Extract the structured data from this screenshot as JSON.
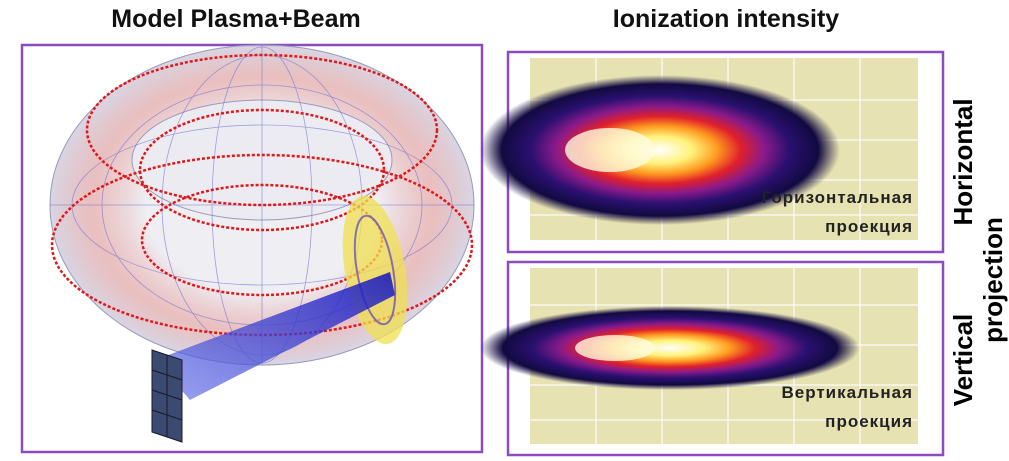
{
  "panels": {
    "left_title": "Model Plasma+Beam",
    "right_title": "Ionization intensity",
    "horizontal_plot": {
      "label_line1": "Горизонтальная",
      "label_line2": "проекция"
    },
    "vertical_plot": {
      "label_line1": "Вертикальная",
      "label_line2": "проекция"
    },
    "side_labels": {
      "horizontal": "Horizontal",
      "vertical": "Vertical",
      "projection": "projection"
    }
  }
}
